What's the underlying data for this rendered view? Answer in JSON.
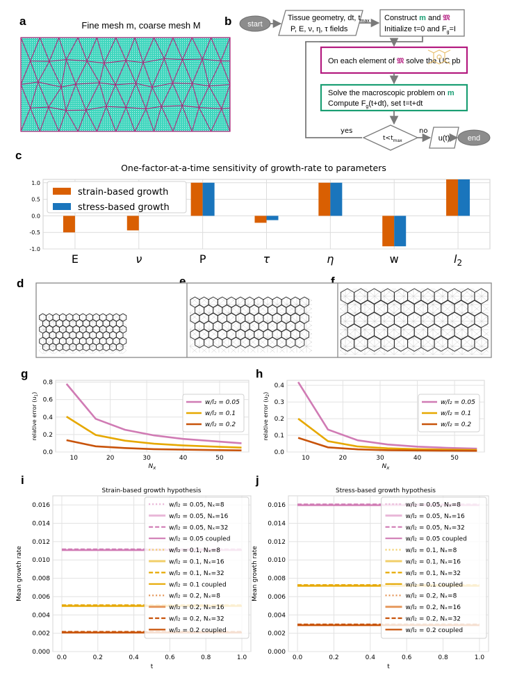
{
  "panel_labels": {
    "a": "a",
    "b": "b",
    "c": "c",
    "d": "d",
    "e": "e",
    "f": "f",
    "g": "g",
    "h": "h",
    "i": "i",
    "j": "j"
  },
  "colors": {
    "mesh_fill": "#3fd6be",
    "mesh_line": "#b0267a",
    "flow_magenta": "#b31a7f",
    "flow_green": "#1a9e73",
    "orange": "#d95f02",
    "blue": "#1a75bc",
    "pink": "#d07bb4",
    "gold": "#e6a800",
    "burnt": "#c8530a"
  },
  "panel_a": {
    "title": "Fine mesh m, coarse mesh M"
  },
  "panel_b": {
    "start": "start",
    "box1_line1": "Tissue geometry, dt, t",
    "box1_sub": "max",
    "box1_line2": "P, E, ν, η, τ fields",
    "box2_line1": "Construct ",
    "box2_m": "m",
    "box2_and": " and ",
    "box2_M": "𝔐",
    "box2_line2": "Initialize t=0 and F",
    "box2_sub": "g",
    "box2_tail": "=I",
    "box3_text": "On each element of ",
    "box3_M": "𝔐",
    "box3_tail": "  solve the UC pb",
    "box4_line1": "Solve the macroscopic problem on ",
    "box4_m": "m",
    "box4_line2a": "Compute F",
    "box4_sub": "g",
    "box4_line2b": "(t+dt), set t=t+dt",
    "decision": "t<t",
    "decision_sub": "max",
    "yes": "yes",
    "no": "no",
    "output": "u(t)",
    "end": "end"
  },
  "chart_data": [
    {
      "id": "c",
      "type": "bar",
      "title": "One-factor-at-a-time sensitivity of growth-rate to parameters",
      "categories": [
        "E",
        "ν",
        "P",
        "τ",
        "η",
        "w",
        "l"
      ],
      "category_sub": [
        "",
        "",
        "",
        "",
        "",
        "",
        "2"
      ],
      "series": [
        {
          "name": "strain-based growth",
          "values": [
            -0.5,
            -0.44,
            1.0,
            -0.21,
            1.0,
            -0.92,
            1.1
          ]
        },
        {
          "name": "stress-based growth",
          "values": [
            0.0,
            0.0,
            1.0,
            -0.13,
            1.0,
            -0.92,
            1.1
          ]
        }
      ],
      "ylim": [
        -1.0,
        1.1
      ],
      "yticks": [
        "-1.0",
        "-0.5",
        "0.0",
        "0.5",
        "1.0"
      ],
      "legend": "top-left",
      "grid": true
    },
    {
      "id": "g",
      "type": "line",
      "xlabel": "N",
      "xlabel_sub": "x",
      "ylabel": "relative error (u",
      "ylabel_sub": "1",
      "xlim": [
        5,
        58
      ],
      "ylim": [
        0,
        0.82
      ],
      "xticks": [
        "10",
        "20",
        "30",
        "40",
        "50"
      ],
      "yticks": [
        "0.0",
        "0.2",
        "0.4",
        "0.6",
        "0.8"
      ],
      "legend": "right",
      "series": [
        {
          "name": "w/l₂ = 0.05",
          "x": [
            8,
            16,
            24,
            32,
            40,
            48,
            56
          ],
          "y": [
            0.78,
            0.38,
            0.255,
            0.19,
            0.15,
            0.125,
            0.1
          ]
        },
        {
          "name": "w/l₂ = 0.1",
          "x": [
            8,
            16,
            24,
            32,
            40,
            48,
            56
          ],
          "y": [
            0.405,
            0.195,
            0.13,
            0.095,
            0.075,
            0.062,
            0.05
          ]
        },
        {
          "name": "w/l₂ = 0.2",
          "x": [
            8,
            16,
            24,
            32,
            40,
            48,
            56
          ],
          "y": [
            0.135,
            0.065,
            0.045,
            0.033,
            0.027,
            0.022,
            0.018
          ]
        }
      ]
    },
    {
      "id": "h",
      "type": "line",
      "xlabel": "N",
      "xlabel_sub": "x",
      "ylabel": "relative error (u",
      "ylabel_sub": "2",
      "xlim": [
        5,
        58
      ],
      "ylim": [
        0,
        0.43
      ],
      "xticks": [
        "10",
        "20",
        "30",
        "40",
        "50"
      ],
      "yticks": [
        "0.0",
        "0.1",
        "0.2",
        "0.3",
        "0.4"
      ],
      "legend": "right",
      "series": [
        {
          "name": "w/l₂ = 0.05",
          "x": [
            8,
            16,
            24,
            32,
            40,
            48,
            56
          ],
          "y": [
            0.42,
            0.135,
            0.07,
            0.045,
            0.032,
            0.025,
            0.02
          ]
        },
        {
          "name": "w/l₂ = 0.1",
          "x": [
            8,
            16,
            24,
            32,
            40,
            48,
            56
          ],
          "y": [
            0.2,
            0.065,
            0.033,
            0.022,
            0.017,
            0.014,
            0.012
          ]
        },
        {
          "name": "w/l₂ = 0.2",
          "x": [
            8,
            16,
            24,
            32,
            40,
            48,
            56
          ],
          "y": [
            0.085,
            0.028,
            0.016,
            0.011,
            0.009,
            0.008,
            0.007
          ]
        }
      ]
    },
    {
      "id": "i",
      "type": "line",
      "title": "Strain-based growth hypothesis",
      "xlabel": "t",
      "ylabel": "Mean growth rate",
      "xlim": [
        -0.05,
        1.05
      ],
      "ylim": [
        0,
        0.017
      ],
      "xticks": [
        "0.0",
        "0.2",
        "0.4",
        "0.6",
        "0.8",
        "1.0"
      ],
      "yticks": [
        "0.000",
        "0.002",
        "0.004",
        "0.006",
        "0.008",
        "0.010",
        "0.012",
        "0.014",
        "0.016"
      ],
      "levels": [
        0.0111,
        0.005,
        0.0021
      ],
      "legend": "right",
      "legend_entries": [
        {
          "label": "w/l₂ = 0.05, Nₓ=8",
          "group": 0,
          "style": "dotted"
        },
        {
          "label": "w/l₂ = 0.05, Nₓ=16",
          "group": 0,
          "style": "light"
        },
        {
          "label": "w/l₂ = 0.05, Nₓ=32",
          "group": 0,
          "style": "dashed"
        },
        {
          "label": "w/l₂ = 0.05 coupled",
          "group": 0,
          "style": "solid"
        },
        {
          "label": "w/l₂ = 0.1, Nₓ=8",
          "group": 1,
          "style": "dotted"
        },
        {
          "label": "w/l₂ = 0.1, Nₓ=16",
          "group": 1,
          "style": "light"
        },
        {
          "label": "w/l₂ = 0.1, Nₓ=32",
          "group": 1,
          "style": "dashed"
        },
        {
          "label": "w/l₂ = 0.1 coupled",
          "group": 1,
          "style": "solid"
        },
        {
          "label": "w/l₂ = 0.2, Nₓ=8",
          "group": 2,
          "style": "dotted"
        },
        {
          "label": "w/l₂ = 0.2, Nₓ=16",
          "group": 2,
          "style": "light"
        },
        {
          "label": "w/l₂ = 0.2, Nₓ=32",
          "group": 2,
          "style": "dashed"
        },
        {
          "label": "w/l₂ = 0.2 coupled",
          "group": 2,
          "style": "solid"
        }
      ]
    },
    {
      "id": "j",
      "type": "line",
      "title": "Stress-based growth hypothesis",
      "xlabel": "t",
      "ylabel": "Mean growth rate",
      "xlim": [
        -0.05,
        1.05
      ],
      "ylim": [
        0,
        0.017
      ],
      "xticks": [
        "0.0",
        "0.2",
        "0.4",
        "0.6",
        "0.8",
        "1.0"
      ],
      "yticks": [
        "0.000",
        "0.002",
        "0.004",
        "0.006",
        "0.008",
        "0.010",
        "0.012",
        "0.014",
        "0.016"
      ],
      "levels": [
        0.016,
        0.0072,
        0.0029
      ],
      "legend": "right",
      "legend_entries": [
        {
          "label": "w/l₂ = 0.05, Nₓ=8",
          "group": 0,
          "style": "dotted"
        },
        {
          "label": "w/l₂ = 0.05, Nₓ=16",
          "group": 0,
          "style": "light"
        },
        {
          "label": "w/l₂ = 0.05, Nₓ=32",
          "group": 0,
          "style": "dashed"
        },
        {
          "label": "w/l₂ = 0.05 coupled",
          "group": 0,
          "style": "solid"
        },
        {
          "label": "w/l₂ = 0.1, Nₓ=8",
          "group": 1,
          "style": "dotted"
        },
        {
          "label": "w/l₂ = 0.1, Nₓ=16",
          "group": 1,
          "style": "light"
        },
        {
          "label": "w/l₂ = 0.1, Nₓ=32",
          "group": 1,
          "style": "dashed"
        },
        {
          "label": "w/l₂ = 0.1 coupled",
          "group": 1,
          "style": "solid"
        },
        {
          "label": "w/l₂ = 0.2, Nₓ=8",
          "group": 2,
          "style": "dotted"
        },
        {
          "label": "w/l₂ = 0.2, Nₓ=16",
          "group": 2,
          "style": "light"
        },
        {
          "label": "w/l₂ = 0.2, Nₓ=32",
          "group": 2,
          "style": "dashed"
        },
        {
          "label": "w/l₂ = 0.2 coupled",
          "group": 2,
          "style": "solid"
        }
      ]
    }
  ]
}
